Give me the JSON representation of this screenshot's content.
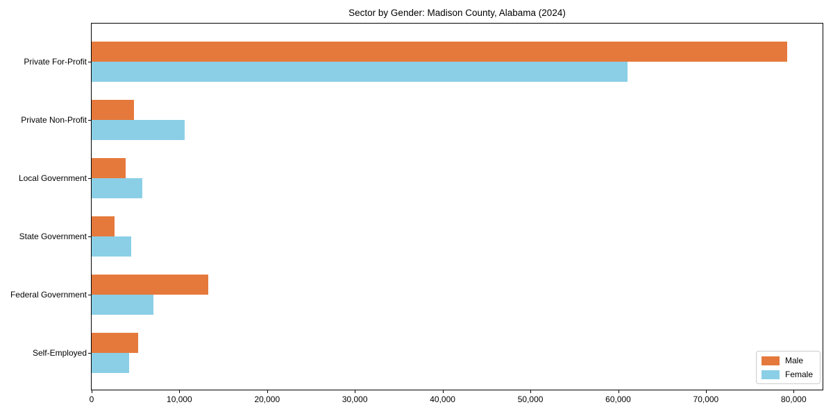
{
  "chart_data": {
    "type": "bar",
    "orientation": "horizontal",
    "title": "Sector by Gender: Madison County, Alabama (2024)",
    "categories": [
      "Private For-Profit",
      "Private Non-Profit",
      "Local Government",
      "State Government",
      "Federal Government",
      "Self-Employed"
    ],
    "series": [
      {
        "name": "Male",
        "color": "#e5793c",
        "values": [
          79300,
          4800,
          3900,
          2600,
          13300,
          5300
        ]
      },
      {
        "name": "Female",
        "color": "#8bcfe6",
        "values": [
          61100,
          10600,
          5800,
          4500,
          7000,
          4300
        ]
      }
    ],
    "xlim": [
      0,
      83300
    ],
    "xticks": [
      0,
      10000,
      20000,
      30000,
      40000,
      50000,
      60000,
      70000,
      80000
    ],
    "xtick_labels": [
      "0",
      "10,000",
      "20,000",
      "30,000",
      "40,000",
      "50,000",
      "60,000",
      "70,000",
      "80,000"
    ],
    "grid": false,
    "legend_position": "lower right",
    "frame_color": "#000000",
    "background_color": "#ffffff"
  }
}
